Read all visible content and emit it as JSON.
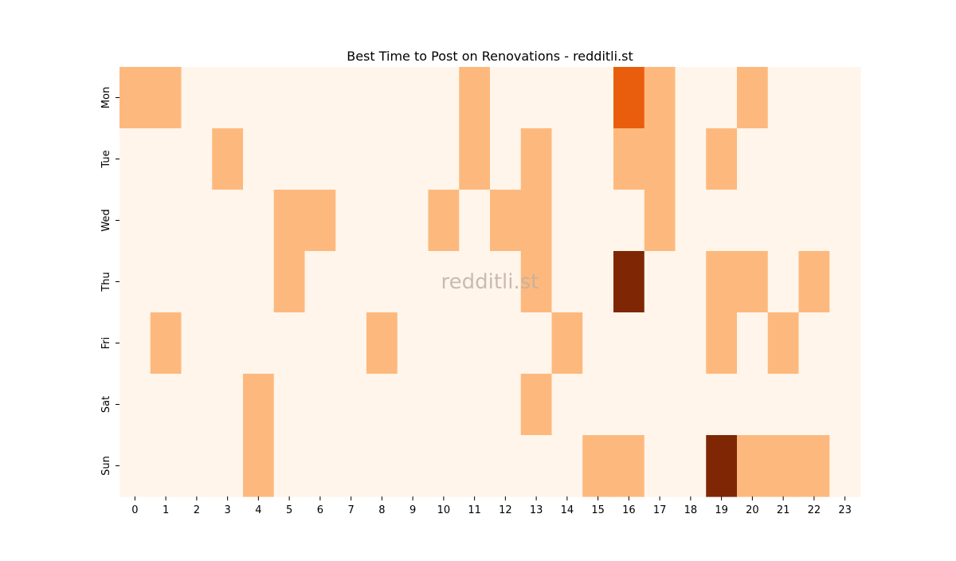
{
  "chart_data": {
    "type": "heatmap",
    "title": "Best Time to Post on Renovations - redditli.st",
    "xlabel": "",
    "ylabel": "",
    "x_categories": [
      "0",
      "1",
      "2",
      "3",
      "4",
      "5",
      "6",
      "7",
      "8",
      "9",
      "10",
      "11",
      "12",
      "13",
      "14",
      "15",
      "16",
      "17",
      "18",
      "19",
      "20",
      "21",
      "22",
      "23"
    ],
    "y_categories": [
      "Mon",
      "Tue",
      "Wed",
      "Thu",
      "Fri",
      "Sat",
      "Sun"
    ],
    "values": [
      [
        1,
        1,
        0,
        0,
        0,
        0,
        0,
        0,
        0,
        0,
        0,
        1,
        0,
        0,
        0,
        0,
        2,
        1,
        0,
        0,
        1,
        0,
        0,
        0
      ],
      [
        0,
        0,
        0,
        1,
        0,
        0,
        0,
        0,
        0,
        0,
        0,
        1,
        0,
        1,
        0,
        0,
        1,
        1,
        0,
        1,
        0,
        0,
        0,
        0
      ],
      [
        0,
        0,
        0,
        0,
        0,
        1,
        1,
        0,
        0,
        0,
        1,
        0,
        1,
        1,
        0,
        0,
        0,
        1,
        0,
        0,
        0,
        0,
        0,
        0
      ],
      [
        0,
        0,
        0,
        0,
        0,
        1,
        0,
        0,
        0,
        0,
        0,
        0,
        0,
        1,
        0,
        0,
        3,
        0,
        0,
        1,
        1,
        0,
        1,
        0
      ],
      [
        0,
        1,
        0,
        0,
        0,
        0,
        0,
        0,
        1,
        0,
        0,
        0,
        0,
        0,
        1,
        0,
        0,
        0,
        0,
        1,
        0,
        1,
        0,
        0
      ],
      [
        0,
        0,
        0,
        0,
        1,
        0,
        0,
        0,
        0,
        0,
        0,
        0,
        0,
        1,
        0,
        0,
        0,
        0,
        0,
        0,
        0,
        0,
        0,
        0
      ],
      [
        0,
        0,
        0,
        0,
        1,
        0,
        0,
        0,
        0,
        0,
        0,
        0,
        0,
        0,
        0,
        1,
        1,
        0,
        0,
        3,
        1,
        1,
        1,
        0
      ]
    ],
    "colorscale": {
      "0": "#fff5eb",
      "1": "#fdb97d",
      "2": "#e95e0d",
      "3": "#7f2704"
    },
    "watermark": "redditli.st",
    "grid": false,
    "legend": "none"
  }
}
